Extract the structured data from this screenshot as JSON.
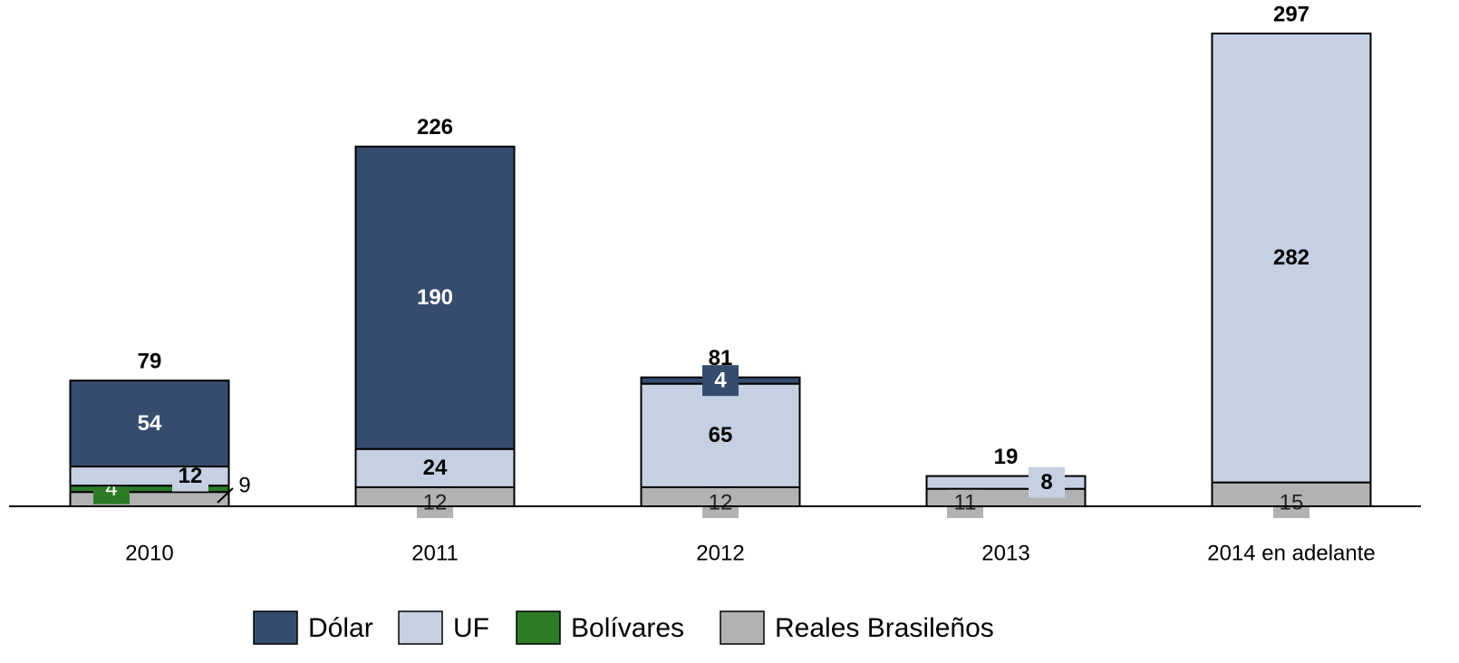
{
  "chart_data": {
    "type": "stacked_bar",
    "categories": [
      "2010",
      "2011",
      "2012",
      "2013",
      "2014 en adelante"
    ],
    "series": [
      {
        "name": "Dólar",
        "color": "#364c6e",
        "values": [
          54,
          190,
          4,
          null,
          null
        ]
      },
      {
        "name": "UF",
        "color": "#c5d0e2",
        "values": [
          12,
          24,
          65,
          8,
          282
        ]
      },
      {
        "name": "Bolívares",
        "color": "#2d7a27",
        "values": [
          4,
          null,
          null,
          null,
          null
        ]
      },
      {
        "name": "Reales Brasileños",
        "color": "#b2b2b2",
        "values": [
          9,
          12,
          12,
          11,
          15
        ]
      }
    ],
    "totals": [
      79,
      226,
      81,
      19,
      297
    ]
  }
}
